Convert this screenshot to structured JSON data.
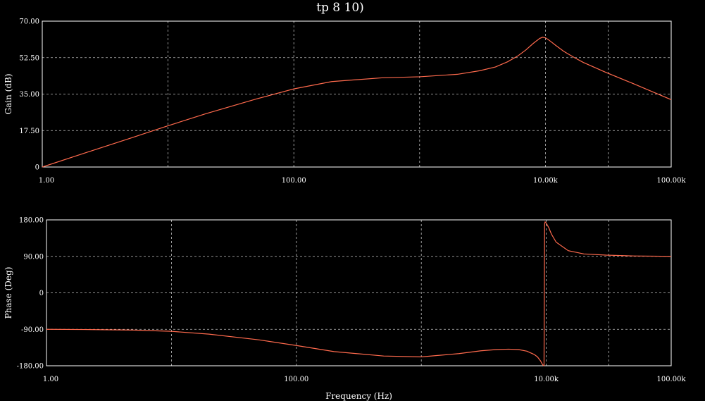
{
  "window": {
    "title": "tp 8   10)"
  },
  "colors": {
    "background": "#000000",
    "axes": "#ffffff",
    "curve": "#ff6a4d"
  },
  "chart_data": [
    {
      "type": "line",
      "panel": "gain",
      "title": "tp 8   10)",
      "xlabel": "",
      "ylabel": "Gain (dB)",
      "x_scale": "log",
      "xlim": [
        1,
        100000
      ],
      "ylim": [
        0,
        70
      ],
      "x_ticks": [
        1,
        100,
        10000,
        100000
      ],
      "x_tick_labels": [
        "1.00",
        "100.00",
        "10.00k",
        "100.00k"
      ],
      "x_grid": [
        10,
        1000,
        31623
      ],
      "y_ticks": [
        0,
        17.5,
        35,
        52.5,
        70
      ],
      "y_tick_labels": [
        "0",
        "17.50",
        "35.00",
        "52.50",
        "70.00"
      ],
      "grid": true,
      "series": [
        {
          "x": [
            1,
            2,
            5,
            10,
            20,
            50,
            100,
            200,
            500,
            1000,
            2000,
            3000,
            4000,
            5000,
            6000,
            7000,
            8000,
            9000,
            9500,
            10000,
            10500,
            11000,
            12000,
            14000,
            17000,
            20000,
            30000,
            50000,
            100000
          ],
          "values": [
            0,
            6,
            13.8,
            19.8,
            25.6,
            32.6,
            37.5,
            41,
            42.8,
            43.3,
            44.5,
            46.2,
            48,
            50.5,
            53.2,
            56.2,
            59.3,
            61.7,
            62.3,
            62,
            61.2,
            60.3,
            58.5,
            55.5,
            52.5,
            50.2,
            45.5,
            40,
            32.3
          ]
        }
      ]
    },
    {
      "type": "line",
      "panel": "phase",
      "title": "",
      "xlabel": "Frequency (Hz)",
      "ylabel": "Phase (Deg)",
      "x_scale": "log",
      "xlim": [
        1,
        100000
      ],
      "ylim": [
        -180,
        180
      ],
      "x_ticks": [
        1,
        100,
        10000,
        100000
      ],
      "x_tick_labels": [
        "1.00",
        "100.00",
        "10.00k",
        "100.00k"
      ],
      "x_grid": [
        10,
        1000,
        31623
      ],
      "y_ticks": [
        -180,
        -90,
        0,
        90,
        180
      ],
      "y_tick_labels": [
        "-180.00",
        "-90.00",
        "0",
        "90.00",
        "180.00"
      ],
      "grid": true,
      "series": [
        {
          "x": [
            1,
            2,
            5,
            10,
            20,
            50,
            100,
            200,
            500,
            1000,
            2000,
            3000,
            4000,
            5000,
            6000,
            7000,
            8000,
            8500,
            9000,
            9300,
            9500,
            9600,
            9700,
            9800,
            10000,
            10500,
            11000,
            12000,
            15000,
            20000,
            30000,
            50000,
            100000
          ],
          "values": [
            -90,
            -90.5,
            -92,
            -95,
            -102,
            -116,
            -130,
            -145,
            -156,
            -158,
            -150,
            -143,
            -140,
            -139,
            -140,
            -144,
            -152,
            -158,
            -168,
            -176,
            -179.5,
            -179,
            170,
            175,
            172,
            160,
            145,
            125,
            104,
            96,
            93,
            91,
            90
          ]
        }
      ]
    }
  ]
}
